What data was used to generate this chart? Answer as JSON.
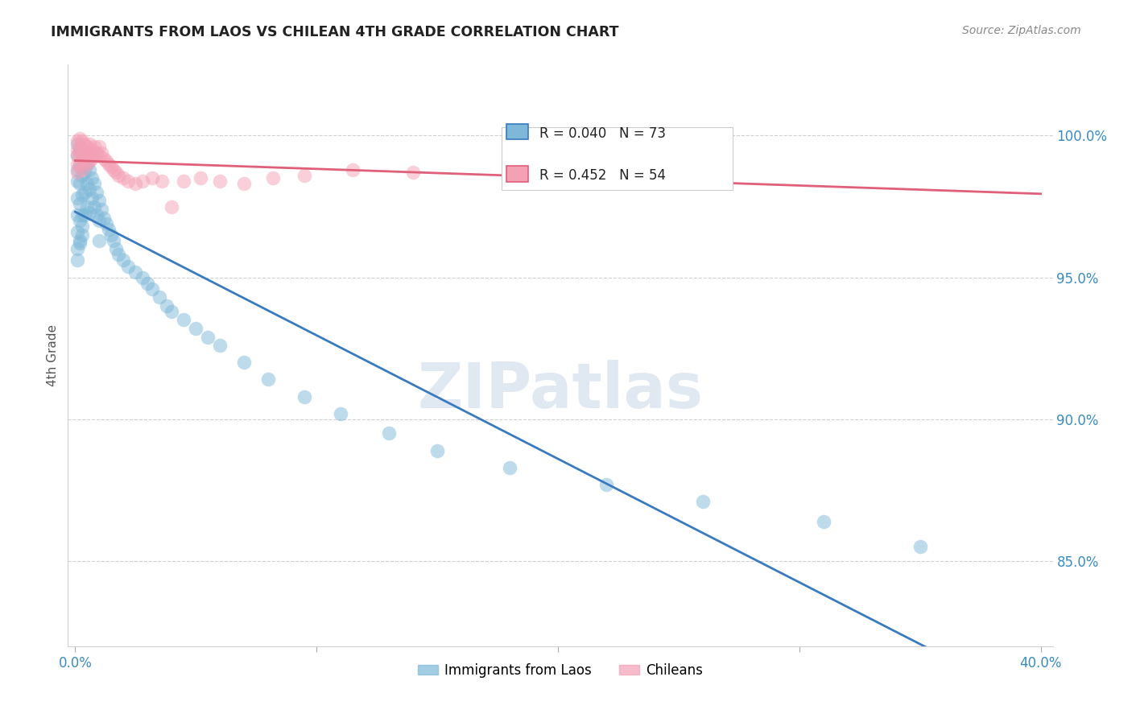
{
  "title": "IMMIGRANTS FROM LAOS VS CHILEAN 4TH GRADE CORRELATION CHART",
  "source": "Source: ZipAtlas.com",
  "ylabel": "4th Grade",
  "yticks": [
    "85.0%",
    "90.0%",
    "95.0%",
    "100.0%"
  ],
  "ytick_vals": [
    0.85,
    0.9,
    0.95,
    1.0
  ],
  "xlim": [
    0.0,
    0.4
  ],
  "ylim": [
    0.82,
    1.025
  ],
  "legend1_label": "Immigrants from Laos",
  "legend2_label": "Chileans",
  "R_blue": 0.04,
  "N_blue": 73,
  "R_pink": 0.452,
  "N_pink": 54,
  "blue_color": "#7db8d8",
  "pink_color": "#f4a0b5",
  "blue_line_color": "#3a7abf",
  "pink_line_color": "#e0607a",
  "background_color": "#ffffff"
}
